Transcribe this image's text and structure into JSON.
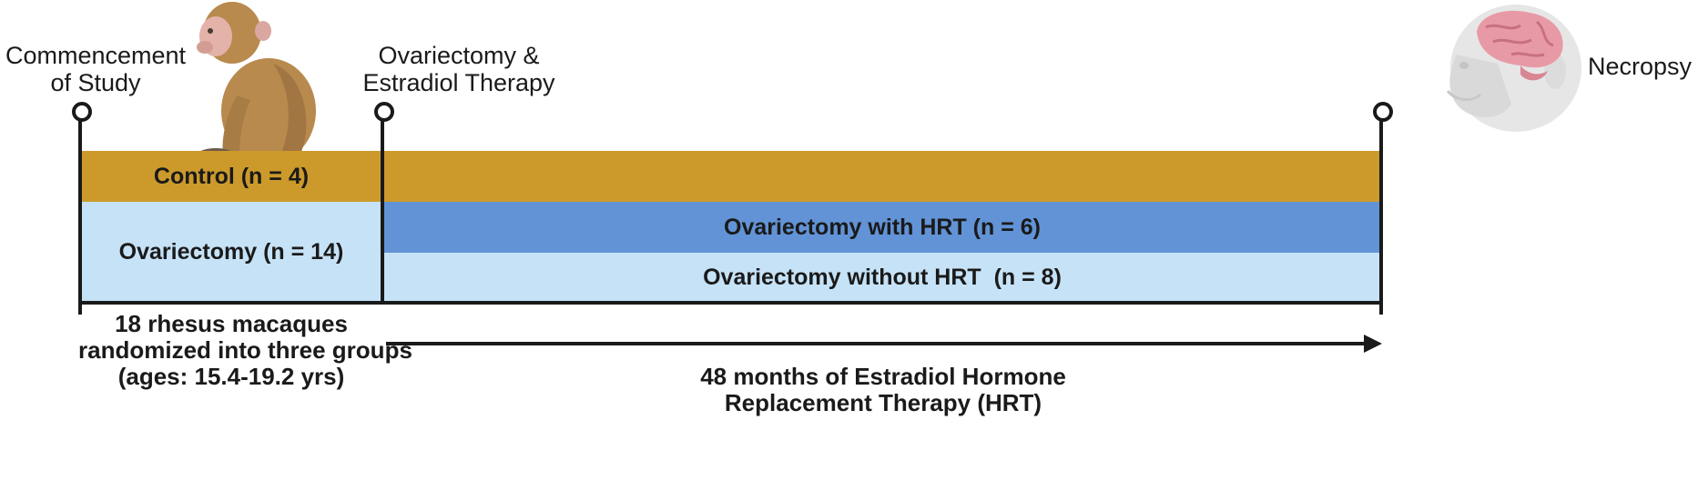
{
  "milestones": {
    "start": "Commencement of Study",
    "start_lines": [
      "Commencement",
      "of Study"
    ],
    "ovx": "Ovariectomy & Estradiol Therapy",
    "ovx_lines": [
      "Ovariectomy &",
      "Estradiol Therapy"
    ],
    "end": "Necropsy"
  },
  "groups": {
    "control": "Control (n = 4)",
    "ovariectomy": "Ovariectomy (n = 14)",
    "ovx_hrt": "Ovariectomy with HRT (n = 6)",
    "ovx_no_hrt": "Ovariectomy without HRT  (n = 8)"
  },
  "footer": {
    "cohort_lines": [
      "18 rhesus macaques",
      "randomized into three groups",
      "(ages: 15.4-19.2 yrs)"
    ],
    "duration_lines": [
      "48 months of Estradiol Hormone",
      "Replacement Therapy (HRT)"
    ]
  },
  "colors": {
    "control": "#cc9a2b",
    "ovx_light": "#c6e2f7",
    "ovx_hrt": "#6193d6",
    "line": "#1a1a1a"
  },
  "icons": [
    "monkey-icon",
    "monkey-brain-icon"
  ]
}
